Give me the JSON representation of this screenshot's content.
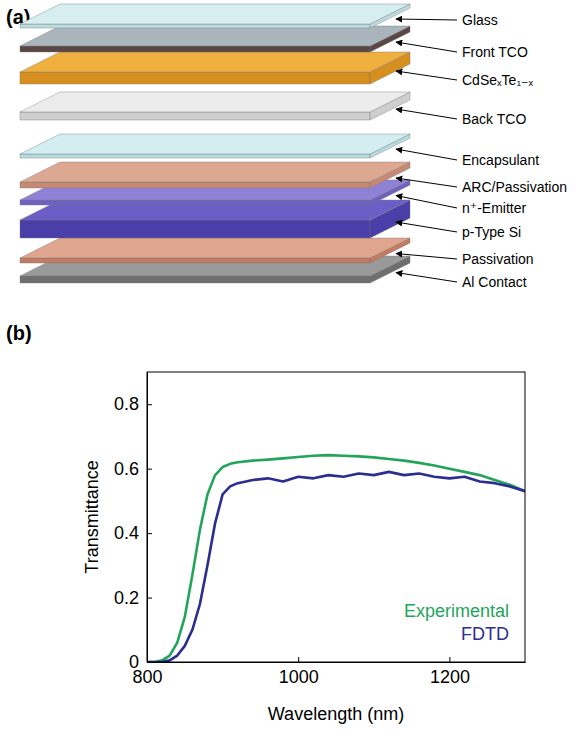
{
  "panel_labels": [
    "(a)",
    "(b)"
  ],
  "diagram": {
    "layers": [
      "Glass",
      "Front TCO",
      "CdSeₓTe₁₋ₓ",
      "Back TCO",
      "Encapsulant",
      "ARC/Passivation",
      "n⁺-Emitter",
      "p-Type Si",
      "Passivation",
      "Al Contact"
    ]
  },
  "chart_data": {
    "type": "line",
    "x_label": "Wavelength (nm)",
    "y_label": "Transmittance",
    "x": [
      800,
      810,
      820,
      830,
      840,
      850,
      860,
      870,
      880,
      890,
      900,
      910,
      920,
      940,
      960,
      980,
      1000,
      1020,
      1040,
      1060,
      1080,
      1100,
      1120,
      1140,
      1160,
      1180,
      1200,
      1220,
      1240,
      1260,
      1280,
      1300
    ],
    "series": [
      {
        "name": "Experimental",
        "color": "#22a55a",
        "values": [
          0,
          0,
          0.005,
          0.02,
          0.06,
          0.14,
          0.27,
          0.41,
          0.52,
          0.58,
          0.605,
          0.615,
          0.62,
          0.625,
          0.628,
          0.632,
          0.636,
          0.64,
          0.642,
          0.64,
          0.638,
          0.635,
          0.63,
          0.625,
          0.618,
          0.61,
          0.6,
          0.59,
          0.58,
          0.565,
          0.55,
          0.53
        ]
      },
      {
        "name": "FDTD",
        "color": "#2b2d8f",
        "values": [
          0,
          0,
          0,
          0.005,
          0.02,
          0.05,
          0.1,
          0.18,
          0.3,
          0.43,
          0.52,
          0.545,
          0.555,
          0.565,
          0.57,
          0.56,
          0.575,
          0.57,
          0.58,
          0.575,
          0.585,
          0.58,
          0.59,
          0.58,
          0.585,
          0.575,
          0.57,
          0.575,
          0.56,
          0.555,
          0.545,
          0.53
        ]
      }
    ],
    "xlim": [
      800,
      1300
    ],
    "xticks": [
      800,
      1000,
      1200
    ],
    "ylim": [
      0,
      0.9
    ],
    "yticks": [
      0,
      0.2,
      0.4,
      0.6,
      0.8
    ],
    "legend": "lower right",
    "grid": false
  }
}
